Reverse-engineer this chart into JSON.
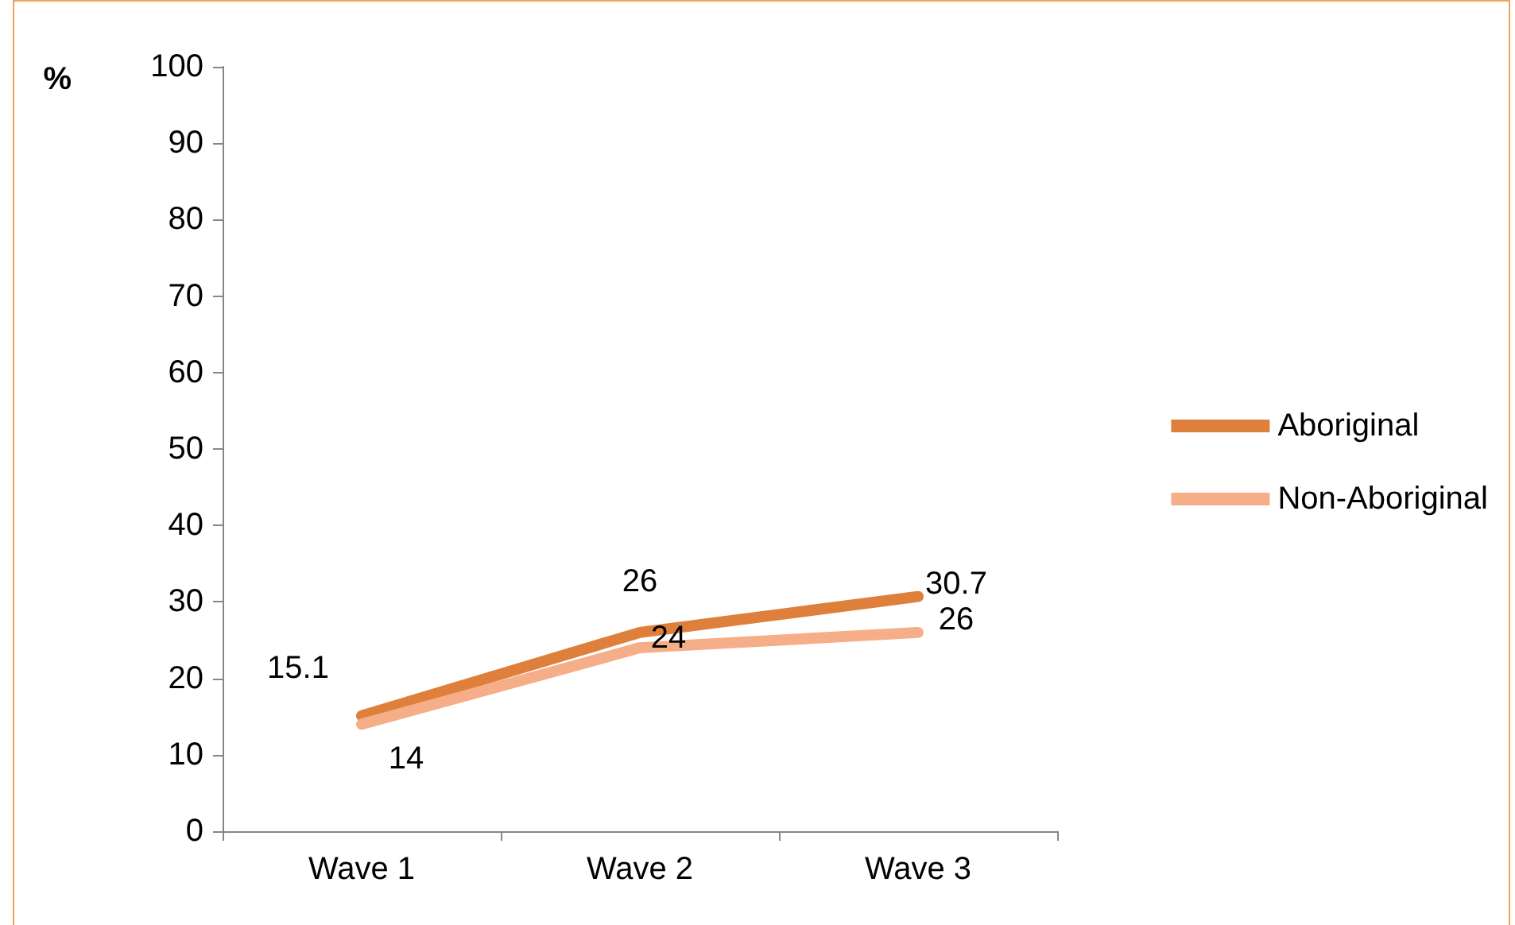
{
  "chart_data": {
    "type": "line",
    "ylabel": "%",
    "categories": [
      "Wave 1",
      "Wave 2",
      "Wave 3"
    ],
    "series": [
      {
        "name": "Aboriginal",
        "color": "#df7f3c",
        "values": [
          15.1,
          26,
          30.7
        ]
      },
      {
        "name": "Non-Aboriginal",
        "color": "#f6ae88",
        "values": [
          14,
          24,
          26
        ]
      }
    ],
    "ylim": [
      0,
      100
    ],
    "yticks": [
      0,
      10,
      20,
      30,
      40,
      50,
      60,
      70,
      80,
      90,
      100
    ],
    "grid": false,
    "legend": "right",
    "marker": "none",
    "line_style": "solid",
    "data_labels": true
  }
}
